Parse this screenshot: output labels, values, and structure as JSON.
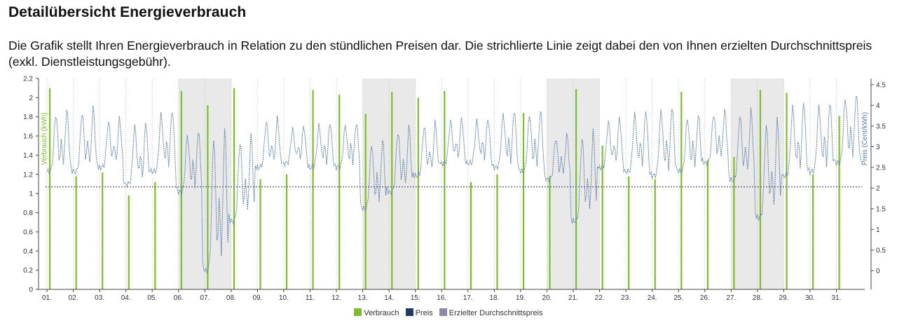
{
  "header": {
    "title": "Detailübersicht Energieverbrauch",
    "description": "Die Grafik stellt Ihren Energieverbrauch in Relation zu den stündlichen Preisen dar. Die strichlierte Linie zeigt dabei den von Ihnen erzielten Durchschnittspreis (exkl. Dienstleistungsgebühr)."
  },
  "colors": {
    "consumption": "#7dbf2b",
    "price": "#5a7ea6",
    "average": "#6f6f9a",
    "weekend_band": "#e9e9e9"
  },
  "chart_data": {
    "type": "bar",
    "x": [
      "01.",
      "02.",
      "03.",
      "04.",
      "05.",
      "06.",
      "07.",
      "08.",
      "09.",
      "10.",
      "11.",
      "12.",
      "13.",
      "14.",
      "15.",
      "16.",
      "17.",
      "18.",
      "19.",
      "20.",
      "21.",
      "22.",
      "23.",
      "24.",
      "25.",
      "26.",
      "27.",
      "28.",
      "29.",
      "30.",
      "31."
    ],
    "y_left_label": "Verbrauch (kWh)",
    "y_left_ticks": [
      "0",
      "0.2",
      "0.4",
      "0.6",
      "0.8",
      "1",
      "1.2",
      "1.4",
      "1.6",
      "1.8",
      "2",
      "2.2"
    ],
    "y_left_range": [
      0,
      2.2
    ],
    "y_right_label": "Preis (Cent/kWh)",
    "y_right_ticks": [
      "0",
      "0.5",
      "1",
      "1.5",
      "2",
      "2.5",
      "3",
      "3.5",
      "4",
      "4.5"
    ],
    "y_right_range": [
      -0.45,
      4.65
    ],
    "weekend_bands": [
      [
        "06.",
        "08."
      ],
      [
        "13.",
        "15."
      ],
      [
        "20.",
        "22."
      ],
      [
        "27.",
        "29."
      ]
    ],
    "series": [
      {
        "name": "Verbrauch",
        "type": "bar",
        "values": [
          2.1,
          1.18,
          1.22,
          0.98,
          1.12,
          2.07,
          1.92,
          2.1,
          1.15,
          1.2,
          2.08,
          2.03,
          1.83,
          2.06,
          2.0,
          2.07,
          1.12,
          1.2,
          1.84,
          1.18,
          2.09,
          1.5,
          1.18,
          1.15,
          2.06,
          1.35,
          1.38,
          2.08,
          2.05,
          1.2,
          1.81
        ]
      },
      {
        "name": "Preis",
        "type": "line",
        "daily_low": [
          2.4,
          2.4,
          2.5,
          2.1,
          2.4,
          1.9,
          0.0,
          1.2,
          2.5,
          2.6,
          2.5,
          2.5,
          1.5,
          1.9,
          2.3,
          2.6,
          2.6,
          2.5,
          2.4,
          2.2,
          1.2,
          2.5,
          2.4,
          2.3,
          2.4,
          2.6,
          2.2,
          1.3,
          2.3,
          2.4,
          2.6
        ],
        "daily_high": [
          3.9,
          3.95,
          3.7,
          3.6,
          3.9,
          3.4,
          3.5,
          3.3,
          3.7,
          3.5,
          3.6,
          3.6,
          3.2,
          3.5,
          3.6,
          3.7,
          3.7,
          3.9,
          3.9,
          3.3,
          3.4,
          3.7,
          3.9,
          4.0,
          3.8,
          3.9,
          3.9,
          3.7,
          4.1,
          4.1,
          4.3
        ]
      },
      {
        "name": "Erzielter Durchschnittspreis",
        "type": "line",
        "value": 2.03
      }
    ],
    "legend": [
      "Verbrauch",
      "Preis",
      "Erzielter Durchschnittspreis"
    ],
    "legend_position": "bottom",
    "grid": "vertical-dotted"
  }
}
